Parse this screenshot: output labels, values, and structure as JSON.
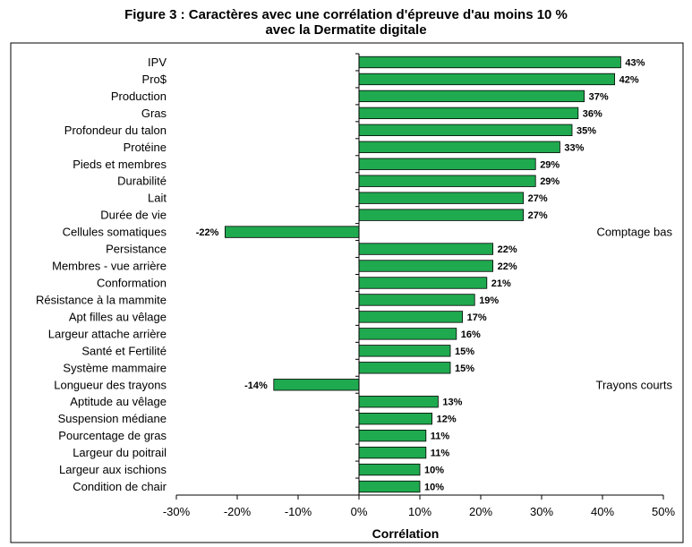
{
  "chart_data": {
    "type": "bar",
    "orientation": "horizontal",
    "title_line1": "Figure 3 : Caractères avec une corrélation d'épreuve d'au moins 10 %",
    "title_line2": "avec la Dermatite digitale",
    "xlabel": "Corrélation",
    "ylabel": "",
    "xlim": [
      -30,
      50
    ],
    "x_ticks": [
      -30,
      -20,
      -10,
      0,
      10,
      20,
      30,
      40,
      50
    ],
    "tick_suffix": "%",
    "grid": false,
    "legend": "none",
    "bar_color": "#1faa4f",
    "categories": [
      "IPV",
      "Pro$",
      "Production",
      "Gras",
      "Profondeur du talon",
      "Protéine",
      "Pieds et membres",
      "Durabilité",
      "Lait",
      "Durée de vie",
      "Cellules somatiques",
      "Persistance",
      "Membres - vue arrière",
      "Conformation",
      "Résistance à la mammite",
      "Apt filles au vêlage",
      "Largeur attache arrière",
      "Santé et Fertilité",
      "Système mammaire",
      "Longueur des trayons",
      "Aptitude au vêlage",
      "Suspension médiane",
      "Pourcentage de gras",
      "Largeur du poitrail",
      "Largeur aux ischions",
      "Condition de chair"
    ],
    "values": [
      43,
      42,
      37,
      36,
      35,
      33,
      29,
      29,
      27,
      27,
      -22,
      22,
      22,
      21,
      19,
      17,
      16,
      15,
      15,
      -14,
      13,
      12,
      11,
      11,
      10,
      10
    ],
    "value_labels": [
      "43%",
      "42%",
      "37%",
      "36%",
      "35%",
      "33%",
      "29%",
      "29%",
      "27%",
      "27%",
      "-22%",
      "22%",
      "22%",
      "21%",
      "19%",
      "17%",
      "16%",
      "15%",
      "15%",
      "-14%",
      "13%",
      "12%",
      "11%",
      "11%",
      "10%",
      "10%"
    ],
    "annotations": [
      {
        "category": "Cellules somatiques",
        "text": "Comptage bas"
      },
      {
        "category": "Longueur des trayons",
        "text": "Trayons courts"
      }
    ]
  }
}
